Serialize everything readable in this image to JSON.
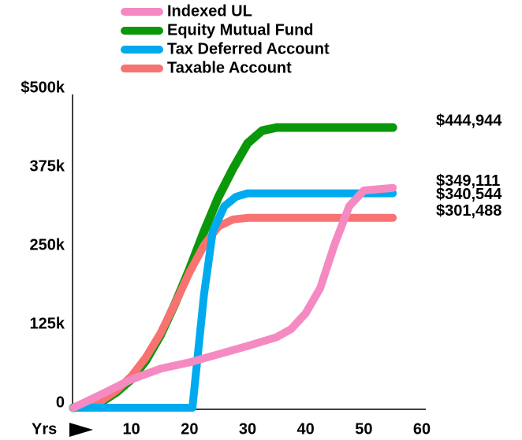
{
  "chart_data": {
    "type": "line",
    "x_label": "Yrs",
    "xlim": [
      0,
      60
    ],
    "xticks": [
      10,
      20,
      30,
      40,
      50,
      60
    ],
    "ylim": [
      0,
      500000
    ],
    "yticks": [
      0,
      {
        "value": 125000,
        "label": "125k"
      },
      {
        "value": 250000,
        "label": "250k"
      },
      {
        "value": 375000,
        "label": "375k"
      },
      {
        "value": 500000,
        "label": "$500k"
      }
    ],
    "series": [
      {
        "name": "Indexed UL",
        "color": "#f58ac2",
        "x": [
          0,
          5,
          10,
          15,
          20,
          25,
          30,
          35,
          37.5,
          40,
          42.5,
          45,
          47.5,
          50,
          55
        ],
        "values": [
          0,
          22000,
          45000,
          62000,
          72000,
          85000,
          98000,
          112000,
          125000,
          150000,
          190000,
          260000,
          320000,
          345000,
          349111
        ],
        "value_labels": [
          null,
          null,
          null,
          null,
          null,
          null,
          null,
          null,
          null,
          null,
          null,
          null,
          null,
          null,
          "$349,111"
        ]
      },
      {
        "name": "Equity Mutual Fund",
        "color": "#0a980a",
        "x": [
          0,
          2.5,
          5,
          7.5,
          10,
          12.5,
          15,
          17.5,
          20,
          22.5,
          25,
          27.5,
          30,
          32.5,
          35,
          55
        ],
        "values": [
          0,
          3000,
          10000,
          25000,
          45000,
          75000,
          115000,
          165000,
          220000,
          280000,
          335000,
          380000,
          420000,
          440000,
          444944,
          444944
        ],
        "value_labels": [
          null,
          null,
          null,
          null,
          null,
          null,
          null,
          null,
          null,
          null,
          null,
          null,
          null,
          null,
          null,
          "$444,944"
        ]
      },
      {
        "name": "Tax Deferred Account",
        "color": "#00aaee",
        "x": [
          0,
          20,
          20.5,
          22.5,
          24,
          26,
          28,
          30,
          55
        ],
        "values": [
          0,
          0,
          0,
          180000,
          280000,
          320000,
          335000,
          340544,
          340544
        ],
        "value_labels": [
          null,
          null,
          null,
          null,
          null,
          null,
          null,
          null,
          "$340,544"
        ]
      },
      {
        "name": "Taxable Account",
        "color": "#f87272",
        "x": [
          0,
          2.5,
          5,
          7.5,
          10,
          12.5,
          15,
          17.5,
          20,
          22.5,
          25,
          27.5,
          30,
          55
        ],
        "values": [
          0,
          4000,
          12000,
          28000,
          50000,
          80000,
          118000,
          165000,
          215000,
          258000,
          288000,
          299000,
          301488,
          301488
        ],
        "value_labels": [
          null,
          null,
          null,
          null,
          null,
          null,
          null,
          null,
          null,
          null,
          null,
          null,
          null,
          "$301,488"
        ]
      }
    ]
  }
}
